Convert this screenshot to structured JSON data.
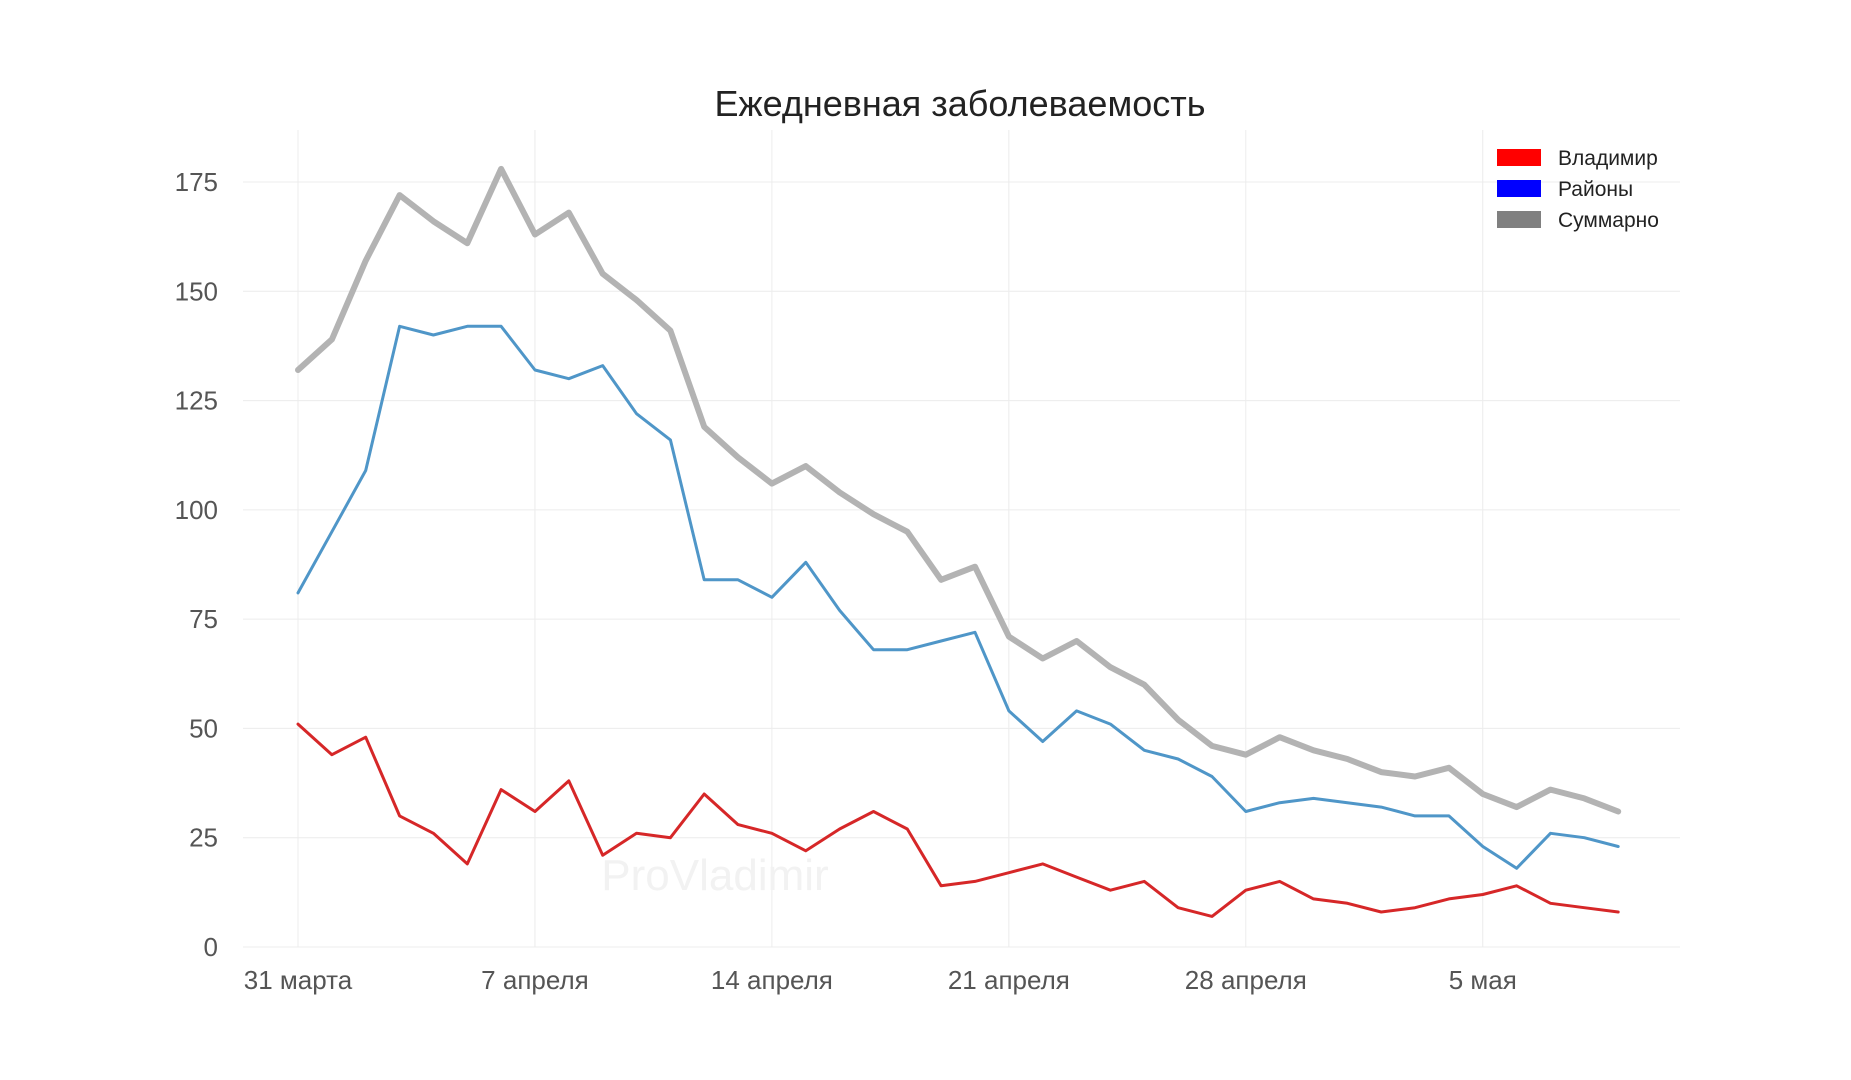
{
  "chart_data": {
    "type": "line",
    "title": "Ежедневная заболеваемость",
    "xlabel": "",
    "ylabel": "",
    "ylim": [
      0,
      188
    ],
    "y_ticks": [
      0,
      25,
      50,
      75,
      100,
      125,
      150,
      175
    ],
    "x_dates": [
      "31.03",
      "01.04",
      "02.04",
      "03.04",
      "04.04",
      "05.04",
      "06.04",
      "07.04",
      "08.04",
      "09.04",
      "10.04",
      "11.04",
      "12.04",
      "13.04",
      "14.04",
      "15.04",
      "16.04",
      "17.04",
      "18.04",
      "19.04",
      "20.04",
      "21.04",
      "22.04",
      "23.04",
      "24.04",
      "25.04",
      "26.04",
      "27.04",
      "28.04",
      "29.04",
      "30.04",
      "01.05",
      "02.05",
      "03.05",
      "04.05",
      "05.05",
      "06.05",
      "07.05",
      "08.05",
      "09.05"
    ],
    "x_ticks": [
      {
        "label": "31 марта",
        "index": 0
      },
      {
        "label": "7 апреля",
        "index": 7
      },
      {
        "label": "14 апреля",
        "index": 14
      },
      {
        "label": "21 апреля",
        "index": 21
      },
      {
        "label": "28 апреля",
        "index": 28
      },
      {
        "label": "5 мая",
        "index": 35
      }
    ],
    "grid": true,
    "legend_position": "top-right",
    "series": [
      {
        "name": "Владимир",
        "color": "#d62728",
        "legend_color": "#ff0000",
        "values": [
          51,
          44,
          48,
          30,
          26,
          19,
          36,
          31,
          38,
          21,
          26,
          25,
          35,
          28,
          26,
          22,
          27,
          31,
          27,
          14,
          15,
          17,
          19,
          16,
          13,
          15,
          9,
          7,
          13,
          15,
          11,
          10,
          8,
          9,
          11,
          12,
          14,
          10,
          9,
          8
        ]
      },
      {
        "name": "Районы",
        "color": "#4f96c8",
        "legend_color": "#0000ff",
        "values": [
          81,
          95,
          109,
          142,
          140,
          142,
          142,
          132,
          130,
          133,
          122,
          116,
          84,
          84,
          80,
          88,
          77,
          68,
          68,
          70,
          72,
          54,
          47,
          54,
          51,
          45,
          43,
          39,
          31,
          33,
          34,
          33,
          32,
          30,
          30,
          23,
          18,
          26,
          25,
          23
        ]
      },
      {
        "name": "Суммарно",
        "color": "#b3b3b3",
        "legend_color": "#808080",
        "values": [
          132,
          139,
          157,
          172,
          166,
          161,
          178,
          163,
          168,
          154,
          148,
          141,
          119,
          112,
          106,
          110,
          104,
          99,
          95,
          84,
          87,
          71,
          66,
          70,
          64,
          60,
          52,
          46,
          44,
          48,
          45,
          43,
          40,
          39,
          41,
          35,
          32,
          36,
          34,
          31
        ]
      }
    ]
  },
  "watermark": "ProVladimir"
}
